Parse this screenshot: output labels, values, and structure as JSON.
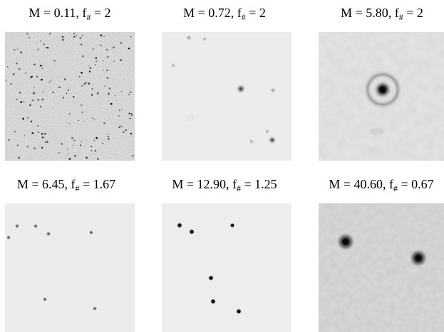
{
  "figure": {
    "panels": [
      {
        "m_text": "M = 0.11, f",
        "sub": "#",
        "tail": " = 2"
      },
      {
        "m_text": "M = 0.72, f",
        "sub": "#",
        "tail": " = 2"
      },
      {
        "m_text": "M = 5.80, f",
        "sub": "#",
        "tail": " = 2"
      },
      {
        "m_text": "M = 6.45, f",
        "sub": "#",
        "tail": " = 1.67"
      },
      {
        "m_text": "M = 12.90, f",
        "sub": "#",
        "tail": " = 1.25"
      },
      {
        "m_text": "M = 40.60, f",
        "sub": "#",
        "tail": " = 0.67"
      }
    ]
  }
}
